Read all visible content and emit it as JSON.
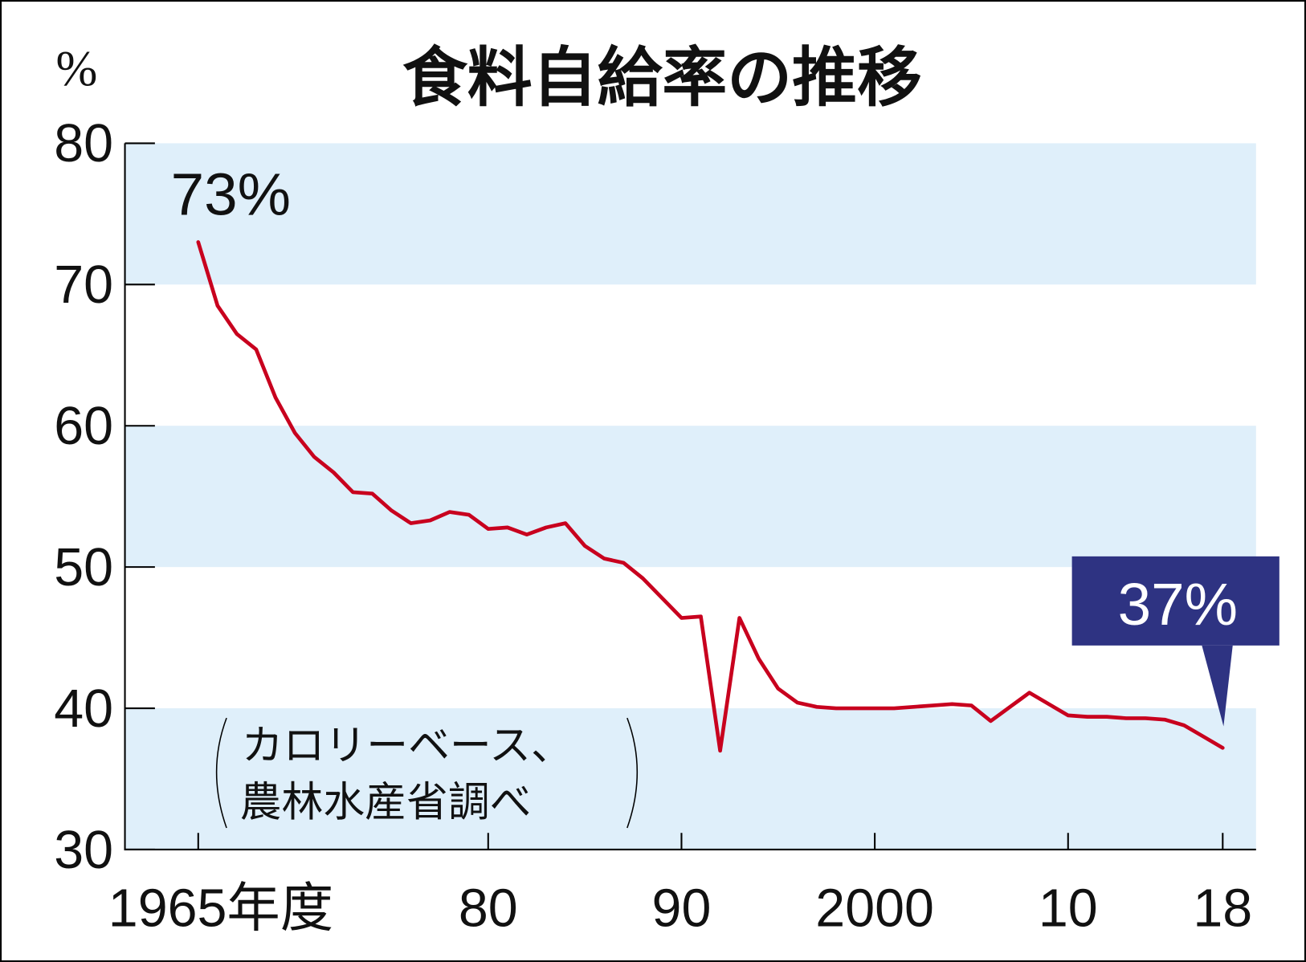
{
  "chart_data": {
    "type": "line",
    "title": "食料自給率の推移",
    "ylabel": "%",
    "xlabel": "",
    "ylim": [
      30,
      80
    ],
    "xlim": [
      1961.2,
      2020.4
    ],
    "yticks": [
      "80",
      "70",
      "60",
      "50",
      "40",
      "30"
    ],
    "ytick_values": [
      80,
      70,
      60,
      50,
      40,
      30
    ],
    "xticks": [
      "1965年度",
      "80",
      "90",
      "2000",
      "10",
      "18"
    ],
    "xtick_values": [
      1965,
      1980,
      1990,
      2000,
      2010,
      2018
    ],
    "bands": [
      [
        70,
        80
      ],
      [
        50,
        60
      ],
      [
        30,
        40
      ]
    ],
    "note_lines": [
      "カロリーベース、",
      "農林水産省調べ"
    ],
    "annotations": {
      "start": "73%",
      "end": "37%"
    },
    "series": [
      {
        "name": "食料自給率(カロリーベース)",
        "color": "#c8001e",
        "x": [
          1965,
          1966,
          1967,
          1968,
          1969,
          1970,
          1971,
          1972,
          1973,
          1974,
          1975,
          1976,
          1977,
          1978,
          1979,
          1980,
          1981,
          1982,
          1983,
          1984,
          1985,
          1986,
          1987,
          1988,
          1989,
          1990,
          1991,
          1992,
          1993,
          1994,
          1995,
          1996,
          1997,
          1998,
          1999,
          2000,
          2001,
          2002,
          2003,
          2004,
          2005,
          2006,
          2007,
          2008,
          2009,
          2010,
          2011,
          2012,
          2013,
          2014,
          2015,
          2016,
          2017,
          2018
        ],
        "values": [
          73,
          68.5,
          66.5,
          65.4,
          62,
          59.5,
          57.8,
          56.7,
          55.3,
          55.2,
          54,
          53.1,
          53.3,
          53.9,
          53.7,
          52.7,
          52.8,
          52.3,
          52.8,
          53.1,
          51.5,
          50.6,
          50.3,
          49.2,
          47.8,
          46.4,
          46.5,
          37,
          46.4,
          43.5,
          41.4,
          40.4,
          40.1,
          40.0,
          40.0,
          40.0,
          40.0,
          40.1,
          40.2,
          40.3,
          40.2,
          39.1,
          40.1,
          41.1,
          40.3,
          39.5,
          39.4,
          39.4,
          39.3,
          39.3,
          39.2,
          38.8,
          38.0,
          37.2
        ]
      }
    ]
  },
  "colors": {
    "band": "#dfeffa",
    "line": "#c8001e",
    "callout": "#2e3382"
  }
}
